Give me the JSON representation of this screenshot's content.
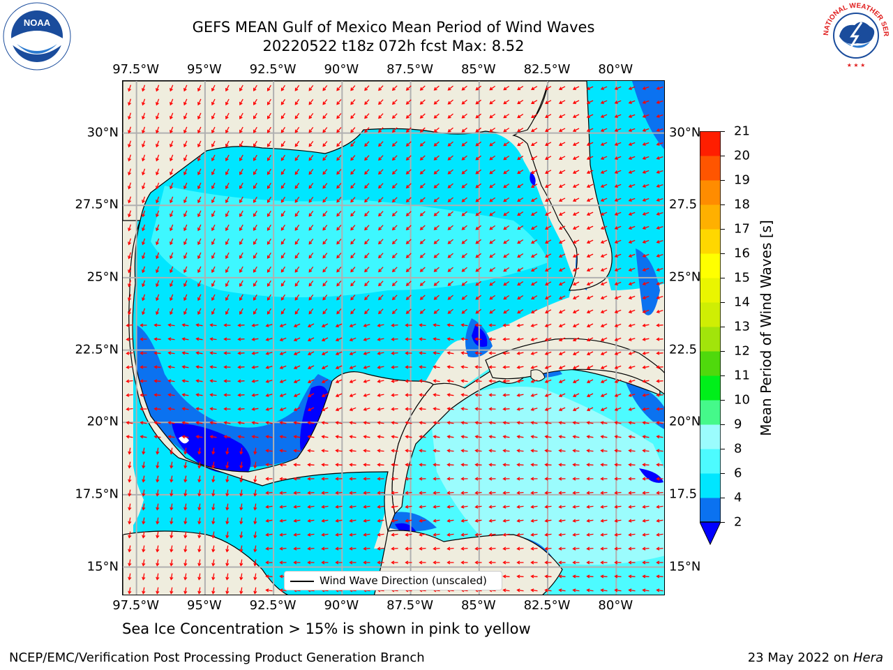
{
  "title": {
    "line1": "GEFS MEAN Gulf of Mexico Mean Period of Wind Waves",
    "line2": "20220522 t18z 072h fcst   Max: 8.52"
  },
  "logos": {
    "left": {
      "name": "NOAA",
      "ring_text": "NATIONAL OCEANIC AND ATMOSPHERIC ADMINISTRATION · U.S. DEPARTMENT OF COMMERCE",
      "color": "#1a4c9c"
    },
    "right": {
      "name": "NATIONAL WEATHER SERVICE",
      "color": "#e01b1b"
    }
  },
  "axes": {
    "lon_labels": [
      "97.5°W",
      "95°W",
      "92.5°W",
      "90°W",
      "87.5°W",
      "85°W",
      "82.5°W",
      "80°W"
    ],
    "lat_labels_left": [
      "30°N",
      "27.5°N",
      "25°N",
      "22.5°N",
      "20°N",
      "17.5°N",
      "15°N"
    ],
    "lat_labels_right": [
      "30°N",
      "27.5",
      "25°N",
      "22.5",
      "20°N",
      "17.5",
      "15°N"
    ],
    "lon_range": [
      -98,
      -78.2
    ],
    "lat_range": [
      14,
      31.8
    ]
  },
  "colorbar": {
    "label": "Mean Period of Wind Waves [s]",
    "ticks": [
      "2",
      "4",
      "6",
      "8",
      "9",
      "10",
      "11",
      "12",
      "13",
      "14",
      "15",
      "16",
      "17",
      "18",
      "19",
      "20",
      "21"
    ],
    "colors": [
      "#0b72f0",
      "#00e6ff",
      "#4dfbff",
      "#9bfcfd",
      "#45f98a",
      "#00ef1a",
      "#4fd90c",
      "#a2e40b",
      "#cfee04",
      "#eaf500",
      "#ffff00",
      "#ffd700",
      "#ffb000",
      "#ff8c00",
      "#ff5500",
      "#ff1e00"
    ],
    "extend_color": "#0000ff"
  },
  "legend": {
    "label": "Wind Wave Direction (unscaled)"
  },
  "note": "Sea Ice Concentration > 15% is shown in pink to yellow",
  "footer": {
    "left": "NCEP/EMC/Verification Post Processing Product Generation Branch",
    "right_date": "23 May 2022 on ",
    "right_host": "Hera"
  },
  "map": {
    "land_color": "#efedde",
    "grid_color": "#b0b0b0",
    "arrow_color": "#ff0000",
    "fill_colors": {
      "shallow": "#0b72f0",
      "low": "#00e6ff",
      "mid": "#4dfbff",
      "high": "#9bfcfd",
      "deep": "#0000ff"
    }
  }
}
